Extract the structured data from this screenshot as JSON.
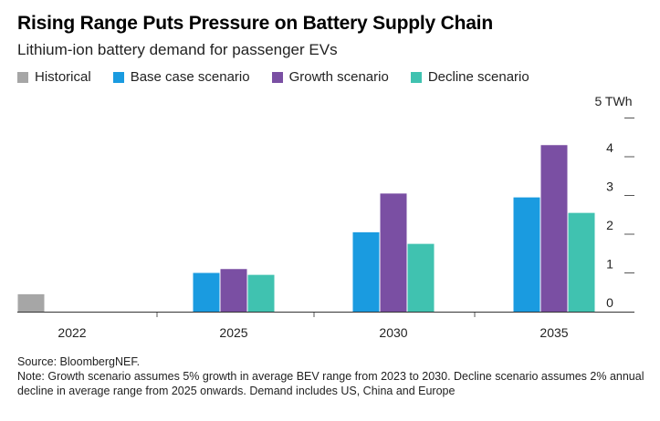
{
  "chart_data": {
    "type": "bar",
    "title": "Rising Range Puts Pressure on Battery Supply Chain",
    "subtitle": "Lithium-ion battery demand for passenger EVs",
    "categories": [
      "2022",
      "2025",
      "2030",
      "2035"
    ],
    "series": [
      {
        "name": "Historical",
        "color": "#a6a6a6",
        "values": [
          0.45,
          null,
          null,
          null
        ]
      },
      {
        "name": "Base case scenario",
        "color": "#1a9be0",
        "values": [
          null,
          1.0,
          2.05,
          2.95
        ]
      },
      {
        "name": "Growth scenario",
        "color": "#7a4fa3",
        "values": [
          null,
          1.1,
          3.05,
          4.3
        ]
      },
      {
        "name": "Decline scenario",
        "color": "#40c2b0",
        "values": [
          null,
          0.95,
          1.75,
          2.55
        ]
      }
    ],
    "y_axis": {
      "ticks": [
        0,
        1,
        2,
        3,
        4,
        5
      ],
      "tick_labels": [
        "0",
        "1",
        "2",
        "3",
        "4",
        "5 TWh"
      ],
      "position": "right",
      "ylim": [
        0,
        5.2
      ]
    },
    "xlabel": "",
    "ylabel": "",
    "legend_position": "top",
    "grid": false
  },
  "footer": {
    "source": "Source: BloombergNEF.",
    "note": "Note: Growth scenario assumes 5% growth in average BEV range from 2023 to 2030. Decline scenario assumes 2% annual decline in average range from 2025 onwards. Demand includes US, China and Europe"
  }
}
